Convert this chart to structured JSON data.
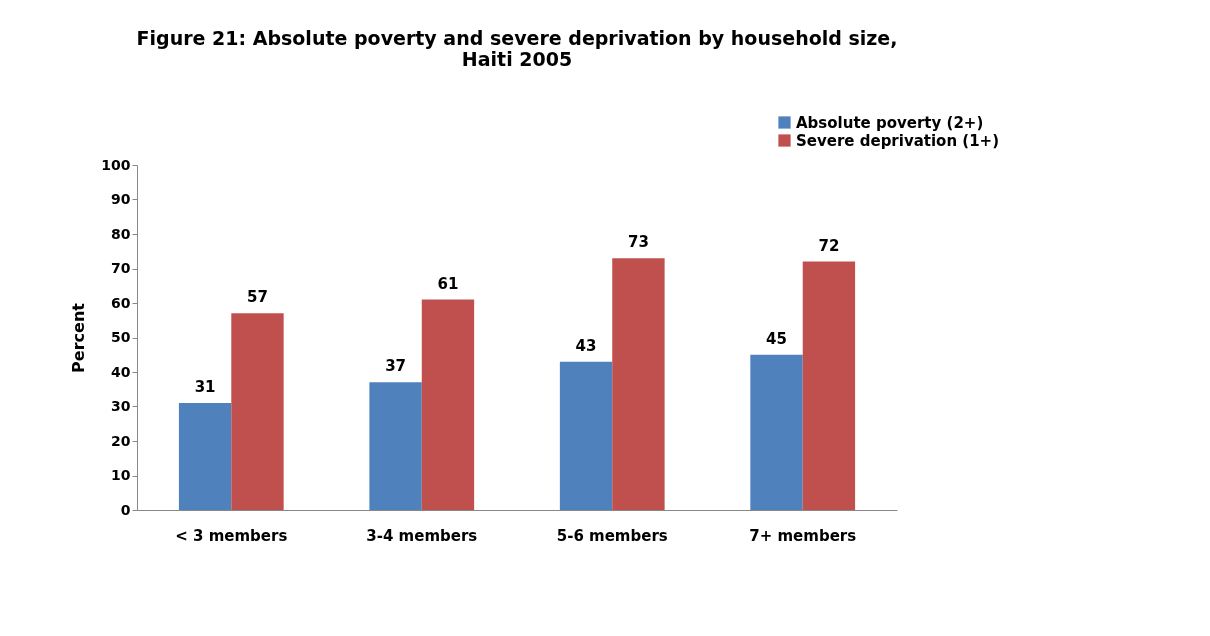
{
  "chart_data": {
    "type": "bar",
    "title": "Figure 21: Absolute poverty and severe deprivation by household size,\nHaiti 2005",
    "ylabel": "Percent",
    "categories": [
      "< 3 members",
      "3-4 members",
      "5-6 members",
      "7+ members"
    ],
    "series": [
      {
        "name": "Absolute poverty (2+)",
        "color": "#4f81bd",
        "values": [
          31,
          37,
          43,
          45
        ]
      },
      {
        "name": "Severe deprivation (1+)",
        "color": "#c0504d",
        "values": [
          57,
          61,
          73,
          72
        ]
      }
    ],
    "ylim": [
      0,
      100
    ],
    "yticks": [
      0,
      10,
      20,
      30,
      40,
      50,
      60,
      70,
      80,
      90,
      100
    ],
    "grid": false,
    "legend": "top right",
    "data_labels": true
  }
}
